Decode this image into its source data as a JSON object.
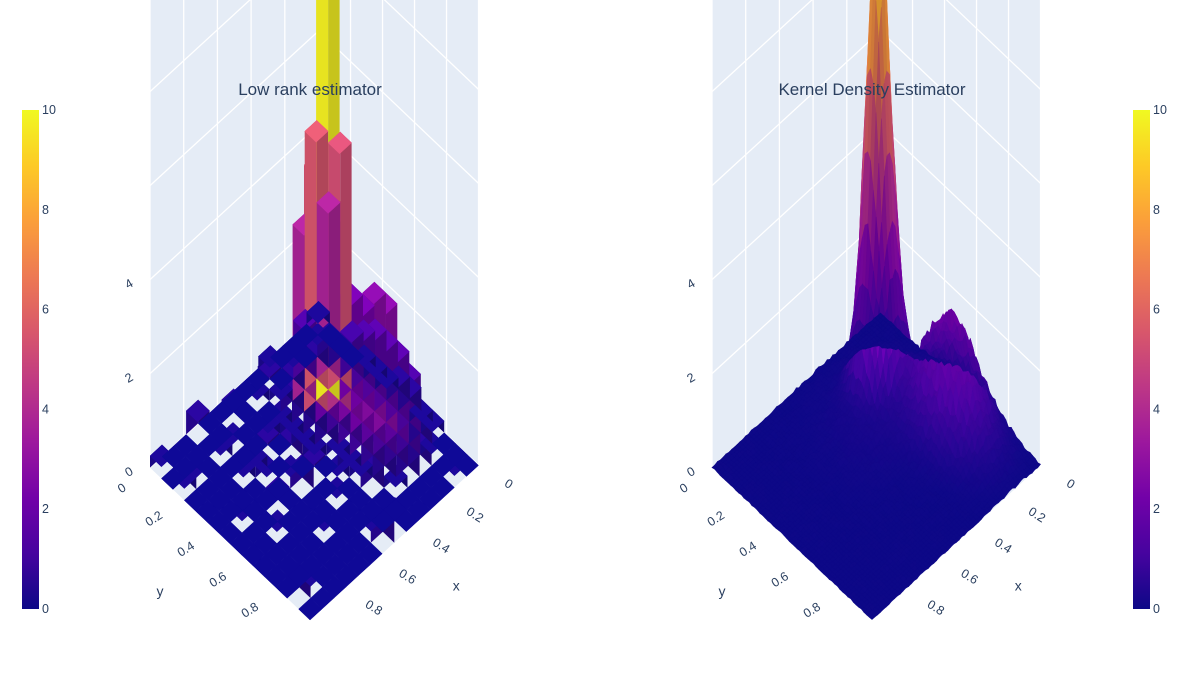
{
  "chart_data": [
    {
      "type": "surface",
      "subtype": "3d-bar-blocks",
      "title": "Low rank estimator",
      "xlabel": "x",
      "ylabel": "y",
      "zlabel": "",
      "xlim": [
        0,
        1
      ],
      "ylim": [
        0,
        1
      ],
      "zlim": [
        0,
        10
      ],
      "x_ticks": [
        "0",
        "0.2",
        "0.4",
        "0.6",
        "0.8"
      ],
      "y_ticks": [
        "0",
        "0.2",
        "0.4",
        "0.6",
        "0.8"
      ],
      "z_ticks": [
        "0",
        "2",
        "4"
      ],
      "colorscale": "Plasma",
      "colorbar": {
        "range": [
          0,
          10
        ],
        "ticks": [
          "0",
          "2",
          "4",
          "6",
          "8",
          "10"
        ]
      },
      "peak": {
        "x": 0.25,
        "y": 0.3,
        "z": 9.8
      },
      "secondary_peak": {
        "x": 0.2,
        "y": 0.55,
        "z": 2.5
      }
    },
    {
      "type": "surface",
      "subtype": "smooth",
      "title": "Kernel Density Estimator",
      "xlabel": "x",
      "ylabel": "y",
      "zlabel": "",
      "xlim": [
        0,
        1
      ],
      "ylim": [
        0,
        1
      ],
      "zlim": [
        0,
        10
      ],
      "x_ticks": [
        "0",
        "0.2",
        "0.4",
        "0.6",
        "0.8"
      ],
      "y_ticks": [
        "0",
        "0.2",
        "0.4",
        "0.6",
        "0.8"
      ],
      "z_ticks": [
        "0",
        "2",
        "4"
      ],
      "colorscale": "Plasma",
      "colorbar": {
        "range": [
          0,
          10
        ],
        "ticks": [
          "0",
          "2",
          "4",
          "6",
          "8",
          "10"
        ]
      },
      "peak": {
        "x": 0.25,
        "y": 0.25,
        "z": 9.9
      },
      "secondary_peak": {
        "x": 0.15,
        "y": 0.6,
        "z": 2.3
      }
    }
  ],
  "colors": {
    "plasma": [
      "#0d0887",
      "#46039f",
      "#7201a8",
      "#9c179e",
      "#bd3786",
      "#d8576b",
      "#ed7953",
      "#fb9f3a",
      "#fdca26",
      "#f0f921"
    ],
    "scene_bg": "#e5ecf6",
    "grid": "#ffffff",
    "text": "#2a3f5f"
  }
}
